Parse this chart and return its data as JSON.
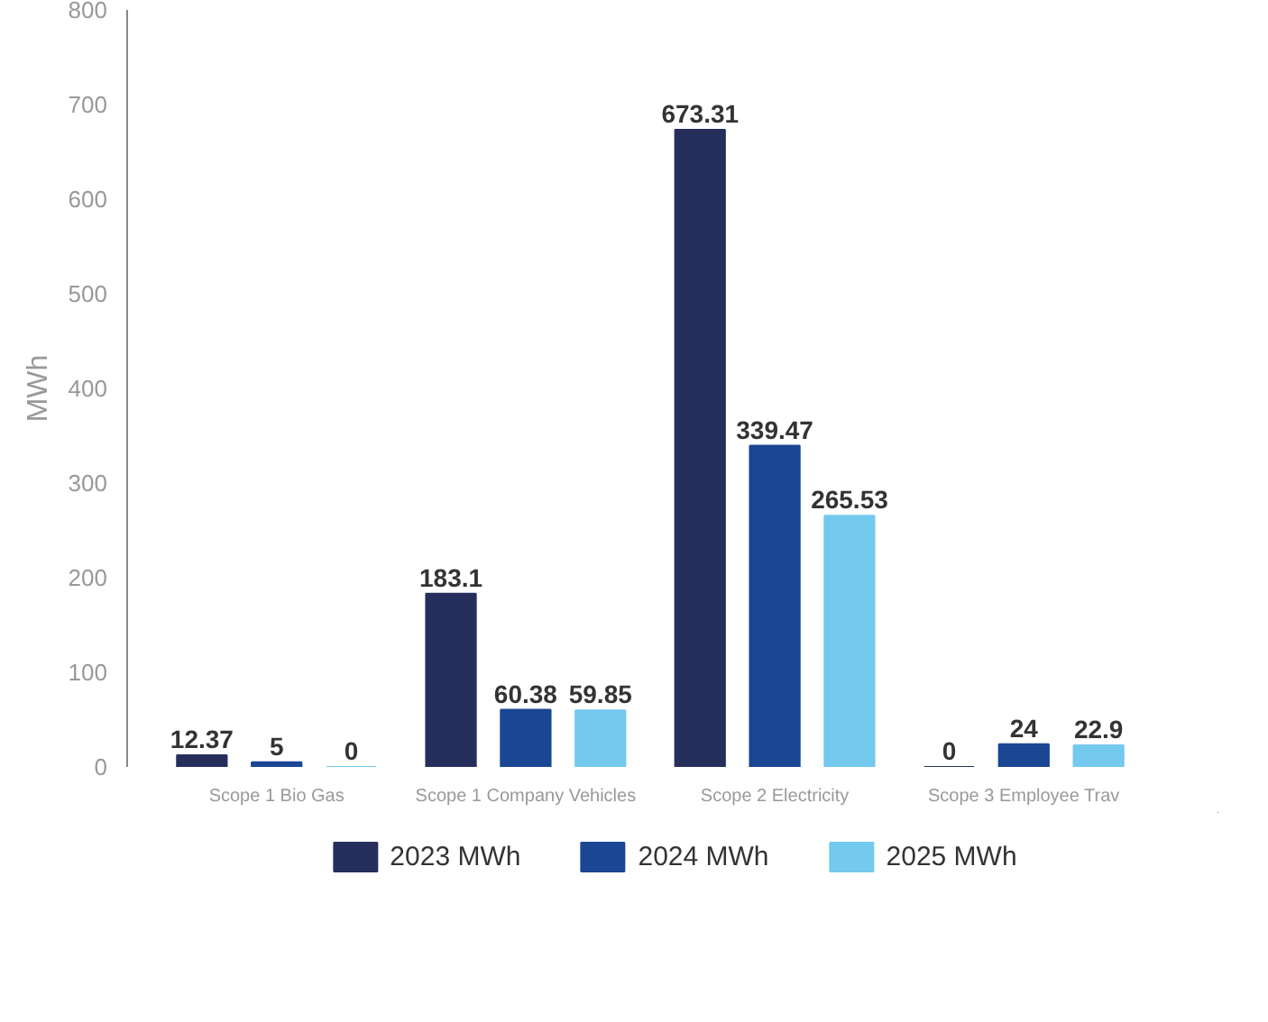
{
  "chart_data": {
    "type": "bar",
    "ylabel": "MWh",
    "categories": [
      "Scope 1 Bio Gas",
      "Scope 1 Company Vehicles",
      "Scope 2 Electricity",
      "Scope 3 Employee Trav"
    ],
    "series": [
      {
        "name": "2023 MWh",
        "color": "#262f5c",
        "values": [
          12.37,
          183.1,
          673.31,
          0
        ]
      },
      {
        "name": "2024 MWh",
        "color": "#1a4693",
        "values": [
          5,
          60.38,
          339.47,
          24
        ]
      },
      {
        "name": "2025 MWh",
        "color": "#74c9ee",
        "values": [
          0,
          59.85,
          265.53,
          22.9
        ]
      }
    ],
    "ylim": [
      0,
      800
    ],
    "yticks": [
      0,
      100,
      200,
      300,
      400,
      500,
      600,
      700,
      800
    ],
    "grid": false,
    "legend": "bottom",
    "data_labels": true
  }
}
